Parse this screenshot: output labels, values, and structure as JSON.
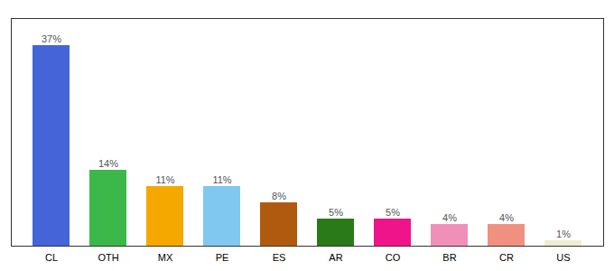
{
  "chart_data": {
    "type": "bar",
    "categories": [
      "CL",
      "OTH",
      "MX",
      "PE",
      "ES",
      "AR",
      "CO",
      "BR",
      "CR",
      "US"
    ],
    "values": [
      37,
      14,
      11,
      11,
      8,
      5,
      5,
      4,
      4,
      1
    ],
    "value_labels": [
      "37%",
      "14%",
      "11%",
      "11%",
      "8%",
      "5%",
      "5%",
      "4%",
      "4%",
      "1%"
    ],
    "colors": [
      "#4464d8",
      "#3cb84a",
      "#f5a800",
      "#80c8f0",
      "#b05a10",
      "#2a7a1a",
      "#f0148a",
      "#f090b8",
      "#f09080",
      "#f0ecd0"
    ],
    "ylim": [
      0,
      42
    ],
    "data_labels": true,
    "tick_labels": "x",
    "grid": false
  }
}
